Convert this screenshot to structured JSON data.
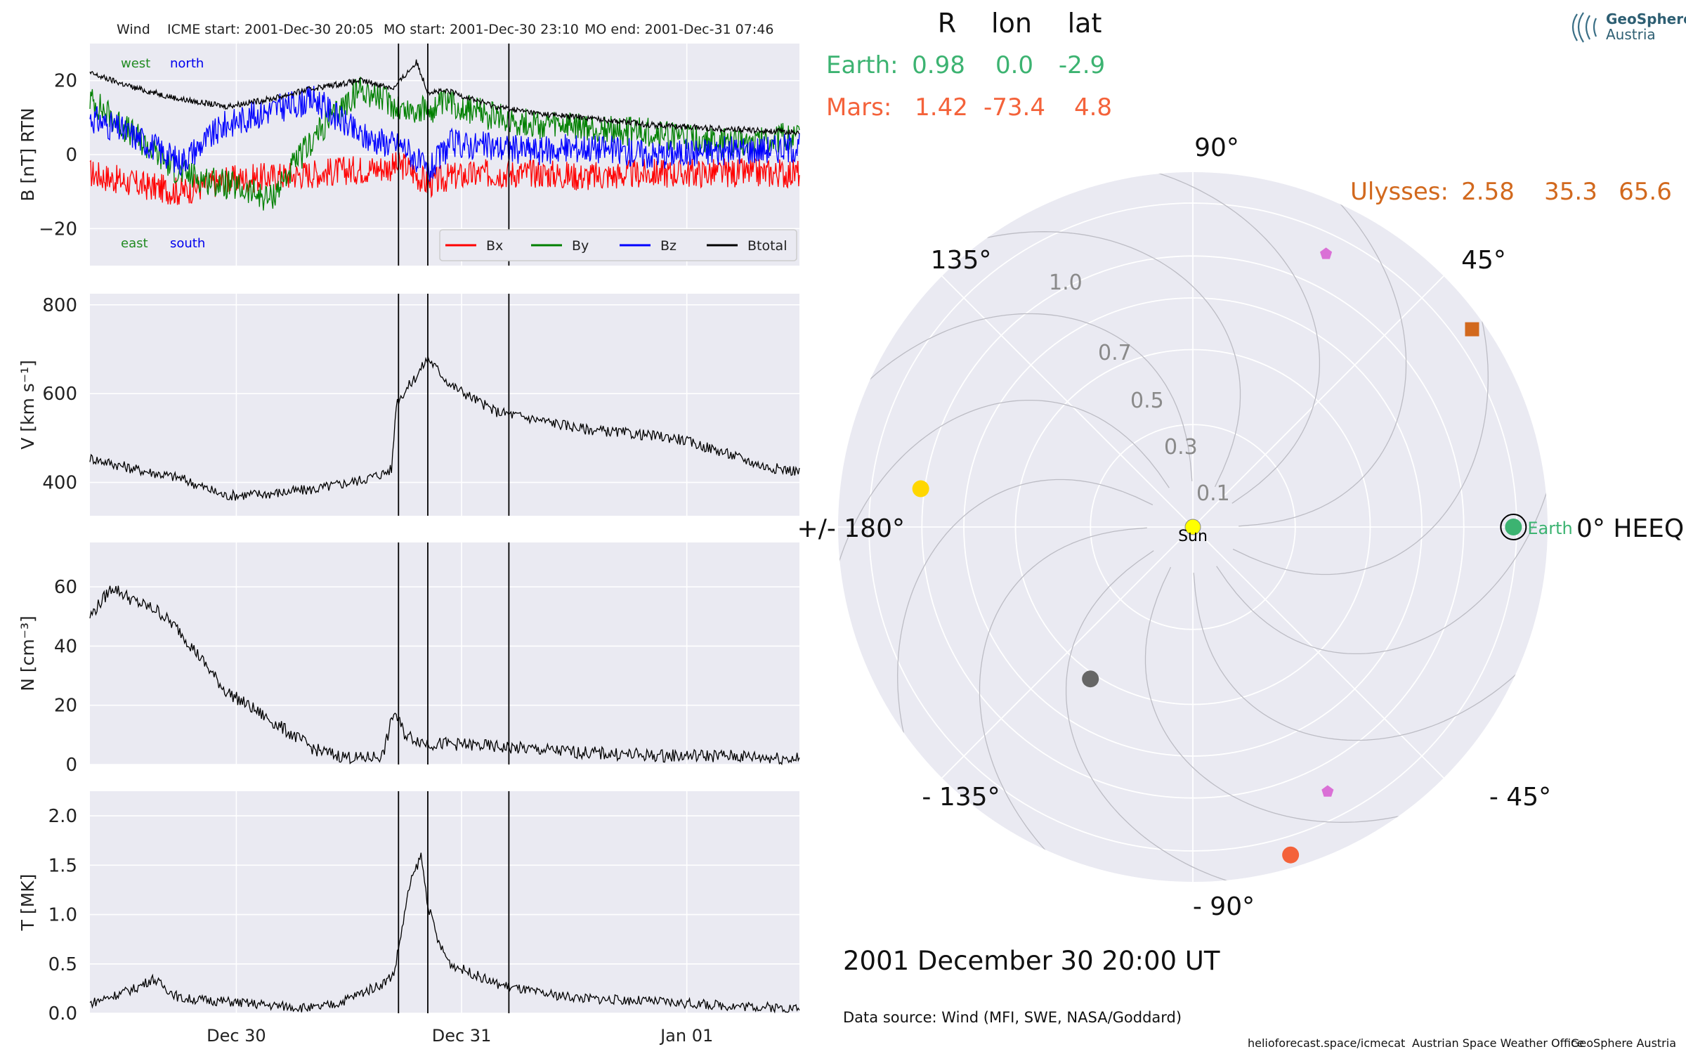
{
  "header": {
    "spacecraft": "Wind",
    "icme_start": "ICME start: 2001-Dec-30 20:05",
    "mo_start": "MO start: 2001-Dec-30 23:10",
    "mo_end": "MO end: 2001-Dec-31 07:46"
  },
  "logo": {
    "line1": "GeoSphere",
    "line2": "Austria"
  },
  "position_table": {
    "columns": [
      "R",
      "lon",
      "lat"
    ],
    "rows": [
      {
        "name": "Earth:",
        "R": "0.98",
        "lon": "0.0",
        "lat": "-2.9",
        "color": "#3cb371"
      },
      {
        "name": "Mars:",
        "R": "1.42",
        "lon": "-73.4",
        "lat": "4.8",
        "color": "#f4623a"
      },
      {
        "name": "Ulysses:",
        "R": "2.58",
        "lon": "35.3",
        "lat": "65.6",
        "color": "#d2691e"
      }
    ]
  },
  "polar": {
    "angle_labels": [
      "90°",
      "45°",
      "0° HEEQ",
      "- 45°",
      "- 90°",
      "- 135°",
      "+/- 180°",
      "135°"
    ],
    "radial_labels": [
      "0.1",
      "0.3",
      "0.5",
      "0.7",
      "1.0"
    ],
    "sun_label": "Sun",
    "earth_label": "Earth",
    "objects": [
      {
        "name": "Sun",
        "r": 0.0,
        "lon": 0,
        "color": "#ffff00",
        "marker": "circle"
      },
      {
        "name": "Earth",
        "r": 0.98,
        "lon": 0.0,
        "color": "#3cb371",
        "marker": "circle"
      },
      {
        "name": "Mars",
        "r": 1.42,
        "lon": -73.4,
        "color": "#f4623a",
        "marker": "circle"
      },
      {
        "name": "Ulysses",
        "r": 2.58,
        "lon": 35.3,
        "color": "#d2691e",
        "marker": "square"
      },
      {
        "name": "yellow",
        "r": 0.72,
        "lon": 172.0,
        "color": "#ffd700",
        "marker": "circle"
      },
      {
        "name": "gray",
        "r": 0.32,
        "lon": -124.0,
        "color": "#666666",
        "marker": "circle"
      },
      {
        "name": "violet-north",
        "r": 0.88,
        "lon": 64.0,
        "color": "#da70d6",
        "marker": "pentagon"
      },
      {
        "name": "violet-south",
        "r": 0.84,
        "lon": -63.0,
        "color": "#da70d6",
        "marker": "pentagon"
      }
    ]
  },
  "date_label": "2001 December 30  20:00 UT",
  "data_source": "Data source: Wind (MFI, SWE, NASA/Goddard)",
  "footer": {
    "site": "helioforecast.space/icmecat",
    "office": "Austrian Space Weather Office",
    "org": "GeoSphere Austria"
  },
  "chart_data": [
    {
      "type": "line",
      "ylabel": "B [nT] RTN",
      "ylim": [
        -30,
        30
      ],
      "yticks": [
        -20,
        0,
        20
      ],
      "ytick_labels": [
        "−20",
        "0",
        "20"
      ],
      "grid": true,
      "legend_position": "lower-right",
      "annotations": [
        {
          "text": "west",
          "color": "#228b22"
        },
        {
          "text": "north",
          "color": "#0000ee"
        },
        {
          "text": "east",
          "color": "#228b22"
        },
        {
          "text": "south",
          "color": "#0000ee"
        }
      ],
      "series": [
        {
          "name": "Bx",
          "color": "#ff0000",
          "x": [
            0,
            0.2,
            0.4,
            0.6,
            0.8,
            1.0,
            1.2,
            1.4,
            1.5,
            1.6,
            1.8,
            2.0,
            2.2,
            2.5,
            2.8,
            3.15
          ],
          "y": [
            -5,
            -8,
            -10,
            -7,
            -6,
            -5,
            -4,
            -3,
            -8,
            -6,
            -5,
            -5,
            -6,
            -5,
            -5,
            -5
          ]
        },
        {
          "name": "By",
          "color": "#008000",
          "x": [
            0,
            0.2,
            0.4,
            0.6,
            0.8,
            1.0,
            1.2,
            1.4,
            1.5,
            1.6,
            1.8,
            2.0,
            2.2,
            2.5,
            2.8,
            3.15
          ],
          "y": [
            15,
            5,
            -5,
            -8,
            -12,
            5,
            18,
            12,
            12,
            14,
            10,
            8,
            7,
            6,
            3,
            5
          ]
        },
        {
          "name": "Bz",
          "color": "#0000ff",
          "x": [
            0,
            0.2,
            0.4,
            0.6,
            0.8,
            1.0,
            1.2,
            1.4,
            1.5,
            1.6,
            1.8,
            2.0,
            2.2,
            2.5,
            2.8,
            3.15
          ],
          "y": [
            10,
            5,
            -2,
            8,
            12,
            15,
            5,
            2,
            -5,
            3,
            2,
            1,
            2,
            0,
            1,
            2
          ]
        },
        {
          "name": "Btotal",
          "color": "#000000",
          "x": [
            0,
            0.2,
            0.4,
            0.6,
            0.8,
            1.0,
            1.2,
            1.35,
            1.45,
            1.5,
            1.6,
            1.8,
            2.0,
            2.2,
            2.5,
            2.8,
            3.15
          ],
          "y": [
            22,
            18,
            15,
            13,
            15,
            18,
            20,
            18,
            25,
            17,
            17,
            13,
            11,
            10,
            8,
            7,
            6
          ]
        }
      ]
    },
    {
      "type": "line",
      "ylabel": "V [km s⁻¹]",
      "ylim": [
        325,
        825
      ],
      "yticks": [
        400,
        600,
        800
      ],
      "ytick_labels": [
        "400",
        "600",
        "800"
      ],
      "grid": true,
      "series": [
        {
          "name": "",
          "color": "#000000",
          "x": [
            0,
            0.2,
            0.4,
            0.6,
            0.8,
            1.0,
            1.2,
            1.3,
            1.34,
            1.36,
            1.45,
            1.5,
            1.6,
            1.8,
            2.0,
            2.2,
            2.4,
            2.6,
            2.8,
            3.0,
            3.15
          ],
          "y": [
            455,
            430,
            410,
            370,
            375,
            385,
            405,
            420,
            430,
            580,
            640,
            680,
            620,
            560,
            540,
            520,
            510,
            500,
            470,
            435,
            425
          ]
        }
      ]
    },
    {
      "type": "line",
      "ylabel": "N [cm⁻³]",
      "ylim": [
        0,
        75
      ],
      "yticks": [
        0,
        20,
        40,
        60
      ],
      "ytick_labels": [
        "0",
        "20",
        "40",
        "60"
      ],
      "grid": true,
      "series": [
        {
          "name": "",
          "color": "#000000",
          "x": [
            0,
            0.1,
            0.2,
            0.3,
            0.4,
            0.5,
            0.6,
            0.7,
            0.8,
            0.9,
            1.0,
            1.1,
            1.2,
            1.3,
            1.35,
            1.4,
            1.5,
            1.6,
            1.8,
            2.0,
            2.2,
            2.5,
            2.8,
            3.15
          ],
          "y": [
            50,
            60,
            55,
            52,
            45,
            35,
            25,
            20,
            15,
            10,
            5,
            3,
            2,
            3,
            18,
            10,
            7,
            7,
            6,
            5,
            4,
            3,
            3,
            2
          ]
        }
      ]
    },
    {
      "type": "line",
      "ylabel": "T [MK]",
      "xlabel": "",
      "ylim": [
        0,
        2.25
      ],
      "yticks": [
        0,
        0.5,
        1.0,
        1.5,
        2.0
      ],
      "ytick_labels": [
        "0.0",
        "0.5",
        "1.0",
        "1.5",
        "2.0"
      ],
      "x_categories": [
        "Dec 30",
        "Dec 31",
        "Jan 01"
      ],
      "grid": true,
      "series": [
        {
          "name": "",
          "color": "#000000",
          "x": [
            0,
            0.2,
            0.28,
            0.4,
            0.6,
            0.8,
            1.0,
            1.1,
            1.2,
            1.3,
            1.35,
            1.42,
            1.47,
            1.5,
            1.55,
            1.6,
            1.8,
            2.0,
            2.2,
            2.5,
            2.8,
            3.15
          ],
          "y": [
            0.1,
            0.25,
            0.35,
            0.15,
            0.12,
            0.08,
            0.05,
            0.1,
            0.2,
            0.3,
            0.4,
            1.3,
            1.6,
            1.1,
            0.7,
            0.5,
            0.3,
            0.2,
            0.15,
            0.12,
            0.08,
            0.05
          ]
        }
      ]
    }
  ]
}
